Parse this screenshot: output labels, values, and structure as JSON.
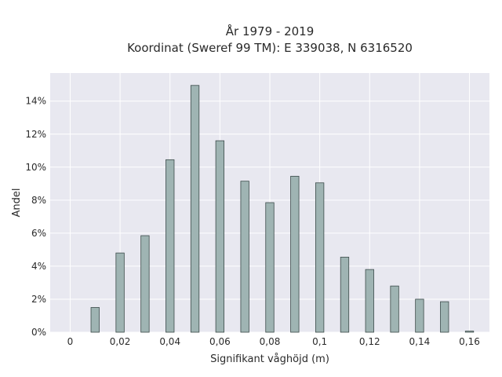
{
  "chart_data": {
    "type": "bar",
    "title": "År 1979 - 2019",
    "subtitle": "Koordinat (Sweref 99 TM): E 339038, N 6316520",
    "xlabel": "Signifikant våghöjd (m)",
    "ylabel": "Andel",
    "x": [
      0.01,
      0.02,
      0.03,
      0.04,
      0.05,
      0.06,
      0.07,
      0.08,
      0.09,
      0.1,
      0.11,
      0.12,
      0.13,
      0.14,
      0.15,
      0.16
    ],
    "values": [
      1.5,
      4.8,
      5.85,
      10.45,
      14.95,
      11.6,
      9.15,
      7.85,
      9.45,
      9.05,
      4.55,
      3.8,
      2.8,
      2.0,
      1.85,
      0.07
    ],
    "xlim": [
      -0.008,
      0.168
    ],
    "ylim": [
      0,
      15.7
    ],
    "xticks": [
      0,
      0.02,
      0.04,
      0.06,
      0.08,
      0.1,
      0.12,
      0.14,
      0.16
    ],
    "xtick_labels": [
      "0",
      "0,02",
      "0,04",
      "0,06",
      "0,08",
      "0,1",
      "0,12",
      "0,14",
      "0,16"
    ],
    "yticks": [
      0,
      2,
      4,
      6,
      8,
      10,
      12,
      14
    ],
    "ytick_labels": [
      "0%",
      "2%",
      "4%",
      "6%",
      "8%",
      "10%",
      "12%",
      "14%"
    ],
    "grid": true,
    "colors": {
      "bar_fill": "#9fb4b3",
      "bar_stroke": "#3c4b4a",
      "plot_background": "#e8e8f0",
      "grid": "#ffffff",
      "text": "#2a2a2a"
    }
  }
}
